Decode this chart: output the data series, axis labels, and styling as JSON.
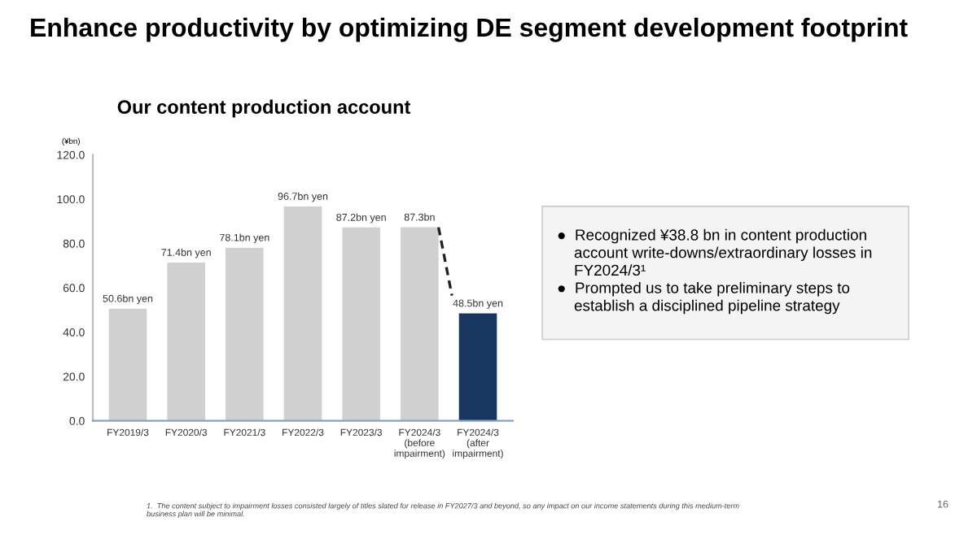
{
  "chart_data": {
    "type": "bar",
    "title": "Enhance productivity by optimizing DE segment development footprint",
    "subtitle": "Our content production account",
    "ylabel": "(¥bn)",
    "categories": [
      "FY2019/3",
      "FY2020/3",
      "FY2021/3",
      "FY2022/3",
      "FY2023/3",
      "FY2024/3\n(before\nimpairment)",
      "FY2024/3\n(after\nimpairment)"
    ],
    "values": [
      50.6,
      71.4,
      78.1,
      96.7,
      87.2,
      87.3,
      48.5
    ],
    "colors": [
      "#d0d0d0",
      "#d0d0d0",
      "#d0d0d0",
      "#d0d0d0",
      "#d0d0d0",
      "#d0d0d0",
      "#173660"
    ],
    "value_labels": [
      "50.6bn yen",
      "71.4bn yen",
      "78.1bn yen",
      "96.7bn yen",
      "87.2bn yen",
      "87.3bn",
      "48.5bn yen"
    ],
    "ylim": [
      0,
      120
    ],
    "yticks": [
      {
        "value": 0,
        "label": "0.0"
      },
      {
        "value": 20,
        "label": "20.0"
      },
      {
        "value": 40,
        "label": "40.0"
      },
      {
        "value": 60,
        "label": "60.0"
      },
      {
        "value": 80,
        "label": "80.0"
      },
      {
        "value": 100,
        "label": "100.0"
      },
      {
        "value": 120,
        "label": "120.0"
      }
    ],
    "grid": false,
    "annotations": [
      "●  Recognized ¥38.8 bn in content production\n    account write-downs/extraordinary losses in\n    FY2024/3¹\n●  Prompted us to take preliminary steps to\n    establish a disciplined pipeline strategy",
      "1.  The content subject to impairment losses consisted largely of titles slated for release in FY2027/3 and beyond, so any impact on our income statements during this medium-term\nbusiness plan will be minimal.",
      "16"
    ]
  }
}
